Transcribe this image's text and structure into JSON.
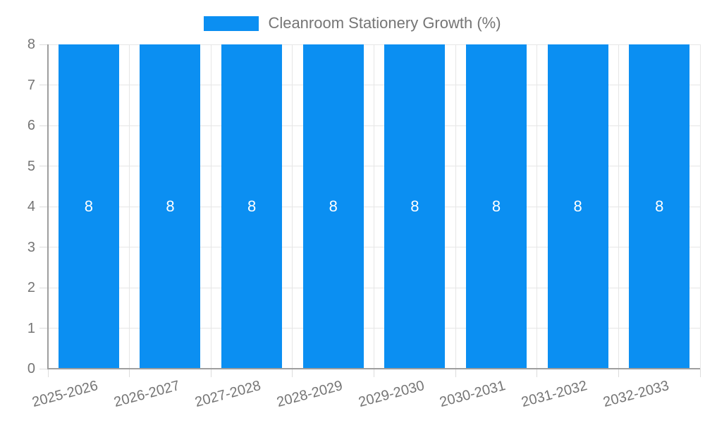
{
  "legend": {
    "label": "Cleanroom Stationery Growth (%)"
  },
  "chart_data": {
    "type": "bar",
    "title": "",
    "series_name": "Cleanroom Stationery Growth (%)",
    "categories": [
      "2025-2026",
      "2026-2027",
      "2027-2028",
      "2028-2029",
      "2029-2030",
      "2030-2031",
      "2031-2032",
      "2032-2033"
    ],
    "values": [
      8,
      8,
      8,
      8,
      8,
      8,
      8,
      8
    ],
    "xlabel": "",
    "ylabel": "",
    "ylim": [
      0,
      8
    ],
    "yticks": [
      0,
      1,
      2,
      3,
      4,
      5,
      6,
      7,
      8
    ],
    "grid": "on",
    "legend_position": "top",
    "colors": {
      "bar": "#0b8ff2",
      "bar_label": "#ffffff",
      "axis_text": "#757575",
      "grid": "#e6e6e6",
      "tick": "#dcdcdc",
      "axis_line": "#9e9e9e",
      "background": "#ffffff"
    }
  }
}
